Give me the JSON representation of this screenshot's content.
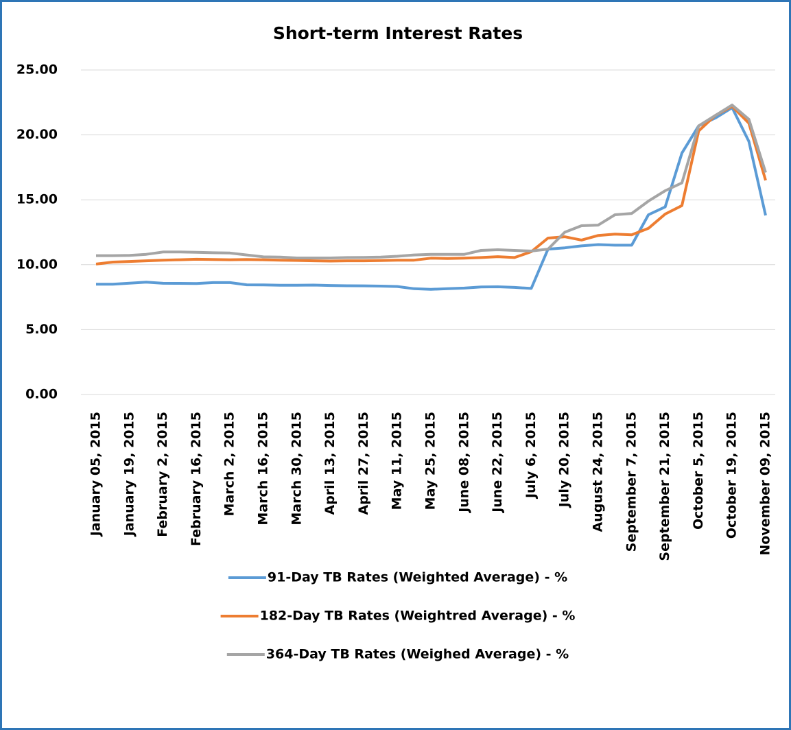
{
  "chart_data": {
    "type": "line",
    "title": "Short-term Interest Rates",
    "categories": [
      "January 05, 2015",
      null,
      "January 19, 2015",
      null,
      "February 2, 2015",
      null,
      "February 16, 2015",
      null,
      "March 2, 2015",
      null,
      "March 16, 2015",
      null,
      "March 30, 2015",
      null,
      "April 13, 2015",
      null,
      "April 27, 2015",
      null,
      "May 11, 2015",
      null,
      "May 25, 2015",
      null,
      "June 08, 2015",
      null,
      "June 22, 2015",
      null,
      "July 6, 2015",
      null,
      "July 20, 2015",
      null,
      "August 24, 2015",
      null,
      "September 7, 2015",
      null,
      "September 21, 2015",
      null,
      "October 5, 2015",
      null,
      "October 19, 2015",
      null,
      "November 09, 2015"
    ],
    "series": [
      {
        "name": "91-Day TB Rates (Weighted Average) - %",
        "color": "#5b9bd5",
        "values": [
          8.5,
          8.5,
          8.58,
          8.65,
          8.57,
          8.56,
          8.55,
          8.62,
          8.62,
          8.45,
          8.44,
          8.42,
          8.42,
          8.43,
          8.4,
          8.38,
          8.37,
          8.35,
          8.32,
          8.15,
          8.1,
          8.15,
          8.2,
          8.28,
          8.3,
          8.25,
          8.17,
          11.2,
          11.3,
          11.45,
          11.55,
          11.5,
          11.5,
          13.85,
          14.45,
          18.6,
          20.7,
          21.3,
          22.1,
          19.5,
          13.8
        ]
      },
      {
        "name": "182-Day TB Rates (Weightred Average) - %",
        "color": "#ed7d31",
        "values": [
          10.05,
          10.2,
          10.25,
          10.3,
          10.35,
          10.38,
          10.42,
          10.4,
          10.38,
          10.4,
          10.38,
          10.35,
          10.33,
          10.3,
          10.28,
          10.3,
          10.3,
          10.32,
          10.35,
          10.35,
          10.5,
          10.48,
          10.5,
          10.55,
          10.62,
          10.55,
          11.0,
          12.05,
          12.15,
          11.9,
          12.25,
          12.35,
          12.3,
          12.8,
          13.9,
          14.55,
          20.3,
          21.5,
          22.2,
          20.9,
          16.5
        ]
      },
      {
        "name": "364-Day TB Rates (Weighed Average) - %",
        "color": "#a5a5a5",
        "values": [
          10.7,
          10.7,
          10.72,
          10.8,
          10.98,
          10.98,
          10.95,
          10.92,
          10.9,
          10.75,
          10.6,
          10.58,
          10.52,
          10.52,
          10.52,
          10.55,
          10.56,
          10.58,
          10.65,
          10.75,
          10.8,
          10.8,
          10.8,
          11.1,
          11.15,
          11.1,
          11.05,
          11.2,
          12.5,
          13.0,
          13.05,
          13.85,
          13.95,
          14.9,
          15.7,
          16.3,
          20.7,
          21.5,
          22.3,
          21.2,
          17.1
        ]
      }
    ],
    "ylim": [
      0,
      25
    ],
    "yticks": [
      {
        "value": 0,
        "label": "0.00"
      },
      {
        "value": 5,
        "label": "5.00"
      },
      {
        "value": 10,
        "label": "10.00"
      },
      {
        "value": 15,
        "label": "15.00"
      },
      {
        "value": 20,
        "label": "20.00"
      },
      {
        "value": 25,
        "label": "25.00"
      }
    ],
    "grid": true,
    "legend": "bottom"
  }
}
